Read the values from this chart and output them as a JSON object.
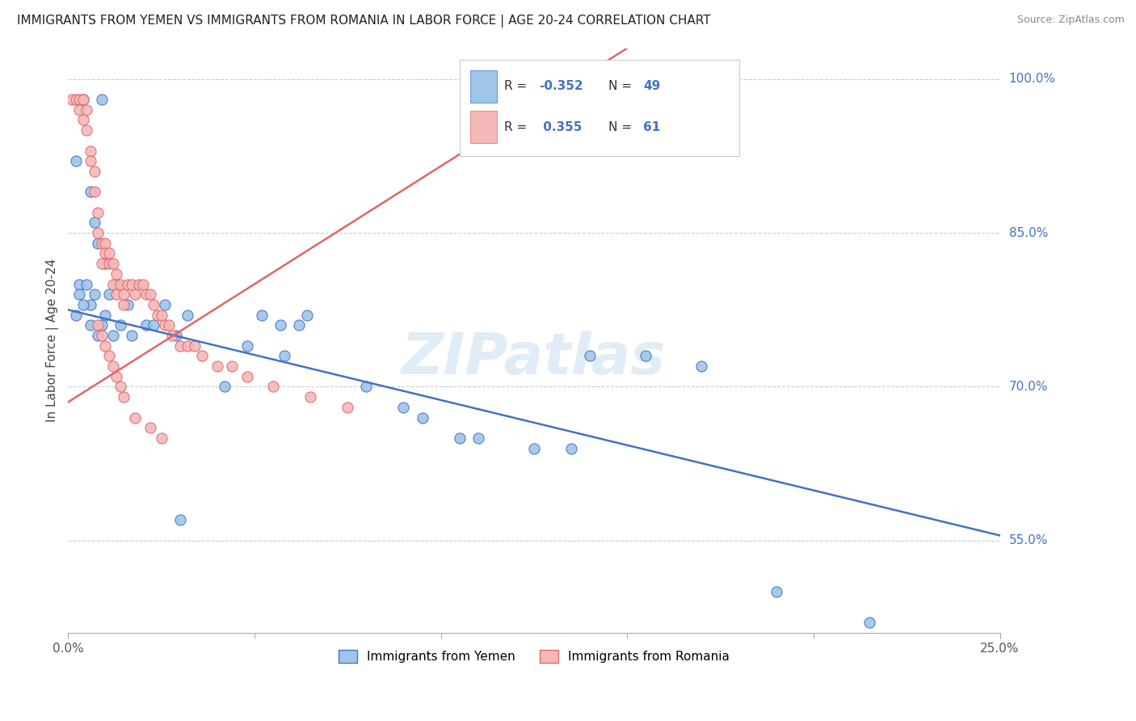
{
  "title": "IMMIGRANTS FROM YEMEN VS IMMIGRANTS FROM ROMANIA IN LABOR FORCE | AGE 20-24 CORRELATION CHART",
  "source": "Source: ZipAtlas.com",
  "ylabel_label": "In Labor Force | Age 20-24",
  "legend_label_yemen": "Immigrants from Yemen",
  "legend_label_romania": "Immigrants from Romania",
  "R_yemen": -0.352,
  "N_yemen": 49,
  "R_romania": 0.355,
  "N_romania": 61,
  "xlim": [
    0.0,
    0.25
  ],
  "ylim": [
    0.46,
    1.03
  ],
  "yticks": [
    0.55,
    0.7,
    0.85,
    1.0
  ],
  "xticks": [
    0.0,
    0.05,
    0.1,
    0.15,
    0.2,
    0.25
  ],
  "color_yemen": "#9fc5e8",
  "color_romania": "#f4b8b8",
  "color_line_yemen": "#4472c4",
  "color_line_romania": "#e06666",
  "watermark": "ZIPatlas",
  "yemen_line_x0": 0.0,
  "yemen_line_y0": 0.775,
  "yemen_line_x1": 0.25,
  "yemen_line_y1": 0.555,
  "romania_line_x0": 0.0,
  "romania_line_y0": 0.685,
  "romania_line_x1": 0.15,
  "romania_line_y1": 1.03,
  "yemen_x": [
    0.004,
    0.009,
    0.002,
    0.006,
    0.007,
    0.008,
    0.01,
    0.003,
    0.003,
    0.005,
    0.006,
    0.007,
    0.009,
    0.011,
    0.013,
    0.016,
    0.021,
    0.026,
    0.032,
    0.052,
    0.057,
    0.062,
    0.064,
    0.002,
    0.004,
    0.006,
    0.008,
    0.01,
    0.012,
    0.014,
    0.017,
    0.023,
    0.029,
    0.048,
    0.058,
    0.14,
    0.155,
    0.17,
    0.19,
    0.215,
    0.125,
    0.135,
    0.095,
    0.105,
    0.08,
    0.09,
    0.11,
    0.042,
    0.03
  ],
  "yemen_y": [
    0.98,
    0.98,
    0.92,
    0.89,
    0.86,
    0.84,
    0.82,
    0.8,
    0.79,
    0.8,
    0.78,
    0.79,
    0.76,
    0.79,
    0.8,
    0.78,
    0.76,
    0.78,
    0.77,
    0.77,
    0.76,
    0.76,
    0.77,
    0.77,
    0.78,
    0.76,
    0.75,
    0.77,
    0.75,
    0.76,
    0.75,
    0.76,
    0.75,
    0.74,
    0.73,
    0.73,
    0.73,
    0.72,
    0.5,
    0.47,
    0.64,
    0.64,
    0.67,
    0.65,
    0.7,
    0.68,
    0.65,
    0.7,
    0.57
  ],
  "romania_x": [
    0.001,
    0.002,
    0.003,
    0.003,
    0.004,
    0.004,
    0.005,
    0.005,
    0.006,
    0.006,
    0.007,
    0.007,
    0.008,
    0.008,
    0.009,
    0.009,
    0.01,
    0.01,
    0.011,
    0.011,
    0.012,
    0.012,
    0.013,
    0.013,
    0.014,
    0.015,
    0.015,
    0.016,
    0.017,
    0.018,
    0.019,
    0.02,
    0.021,
    0.022,
    0.023,
    0.024,
    0.025,
    0.026,
    0.027,
    0.028,
    0.03,
    0.032,
    0.034,
    0.036,
    0.04,
    0.044,
    0.048,
    0.055,
    0.065,
    0.075,
    0.008,
    0.009,
    0.01,
    0.011,
    0.012,
    0.013,
    0.014,
    0.015,
    0.018,
    0.022,
    0.025
  ],
  "romania_y": [
    0.98,
    0.98,
    0.98,
    0.97,
    0.98,
    0.96,
    0.97,
    0.95,
    0.93,
    0.92,
    0.91,
    0.89,
    0.87,
    0.85,
    0.84,
    0.82,
    0.84,
    0.83,
    0.83,
    0.82,
    0.82,
    0.8,
    0.81,
    0.79,
    0.8,
    0.79,
    0.78,
    0.8,
    0.8,
    0.79,
    0.8,
    0.8,
    0.79,
    0.79,
    0.78,
    0.77,
    0.77,
    0.76,
    0.76,
    0.75,
    0.74,
    0.74,
    0.74,
    0.73,
    0.72,
    0.72,
    0.71,
    0.7,
    0.69,
    0.68,
    0.76,
    0.75,
    0.74,
    0.73,
    0.72,
    0.71,
    0.7,
    0.69,
    0.67,
    0.66,
    0.65
  ]
}
